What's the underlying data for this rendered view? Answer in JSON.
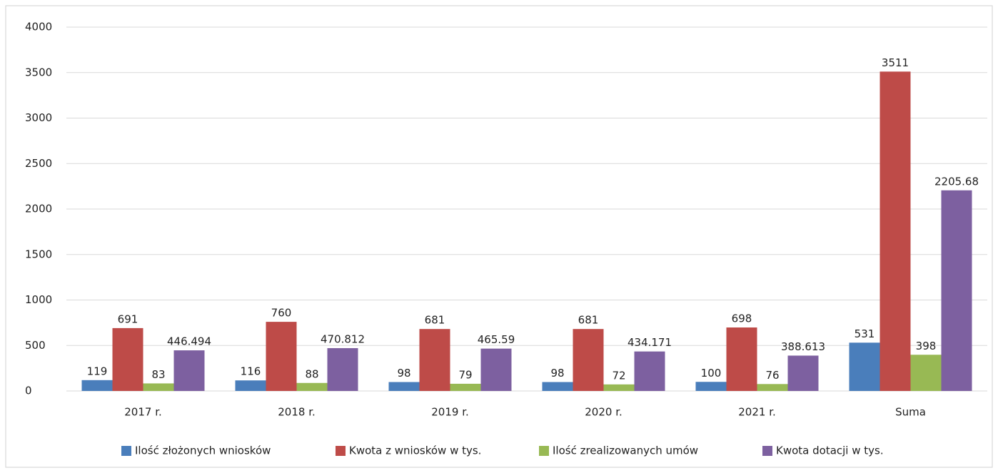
{
  "chart_data": {
    "type": "bar",
    "categories": [
      "2017 r.",
      "2018 r.",
      "2019 r.",
      "2020 r.",
      "2021 r.",
      "Suma"
    ],
    "series": [
      {
        "name": "Ilość złożonych wniosków",
        "color": "#4a7ebb",
        "values": [
          119,
          116,
          98,
          98,
          100,
          531
        ]
      },
      {
        "name": "Kwota z wniosków w tys.",
        "color": "#be4b48",
        "values": [
          691,
          760,
          681,
          681,
          698,
          3511
        ]
      },
      {
        "name": "Ilość zrealizowanych umów",
        "color": "#98b954",
        "values": [
          83,
          88,
          79,
          72,
          76,
          398
        ]
      },
      {
        "name": "Kwota dotacji w tys.",
        "color": "#7d60a0",
        "values": [
          446.494,
          470.812,
          465.59,
          434.171,
          388.613,
          2205.68
        ]
      }
    ],
    "ylim": [
      0,
      4000
    ],
    "yticks": [
      0,
      500,
      1000,
      1500,
      2000,
      2500,
      3000,
      3500,
      4000
    ],
    "grid": true,
    "legend": "bottom"
  }
}
